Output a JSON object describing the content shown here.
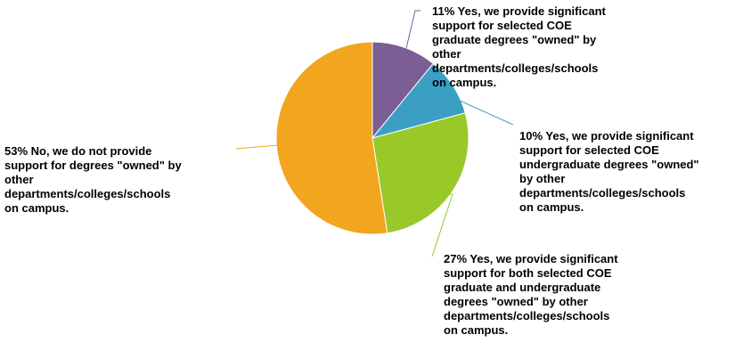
{
  "chart_data": {
    "type": "pie",
    "slices": [
      {
        "percent": 11,
        "label": "11% Yes, we provide significant\nsupport for selected COE\ngraduate degrees \"owned\" by\nother\ndepartments/colleges/schools\non campus.",
        "color": "#7b5e93"
      },
      {
        "percent": 10,
        "label": "10% Yes, we provide significant\nsupport for selected COE\nundergraduate degrees \"owned\"\nby other\ndepartments/colleges/schools\non campus.",
        "color": "#3a9fc2"
      },
      {
        "percent": 27,
        "label": "27% Yes, we provide significant\nsupport for both selected COE\ngraduate and undergraduate\ndegrees \"owned\" by other\ndepartments/colleges/schools\non campus.",
        "color": "#99c928"
      },
      {
        "percent": 53,
        "label": "53% No, we do not provide\nsupport for degrees \"owned\" by\nother\ndepartments/colleges/schools\non campus.",
        "color": "#f2a51e"
      }
    ]
  }
}
